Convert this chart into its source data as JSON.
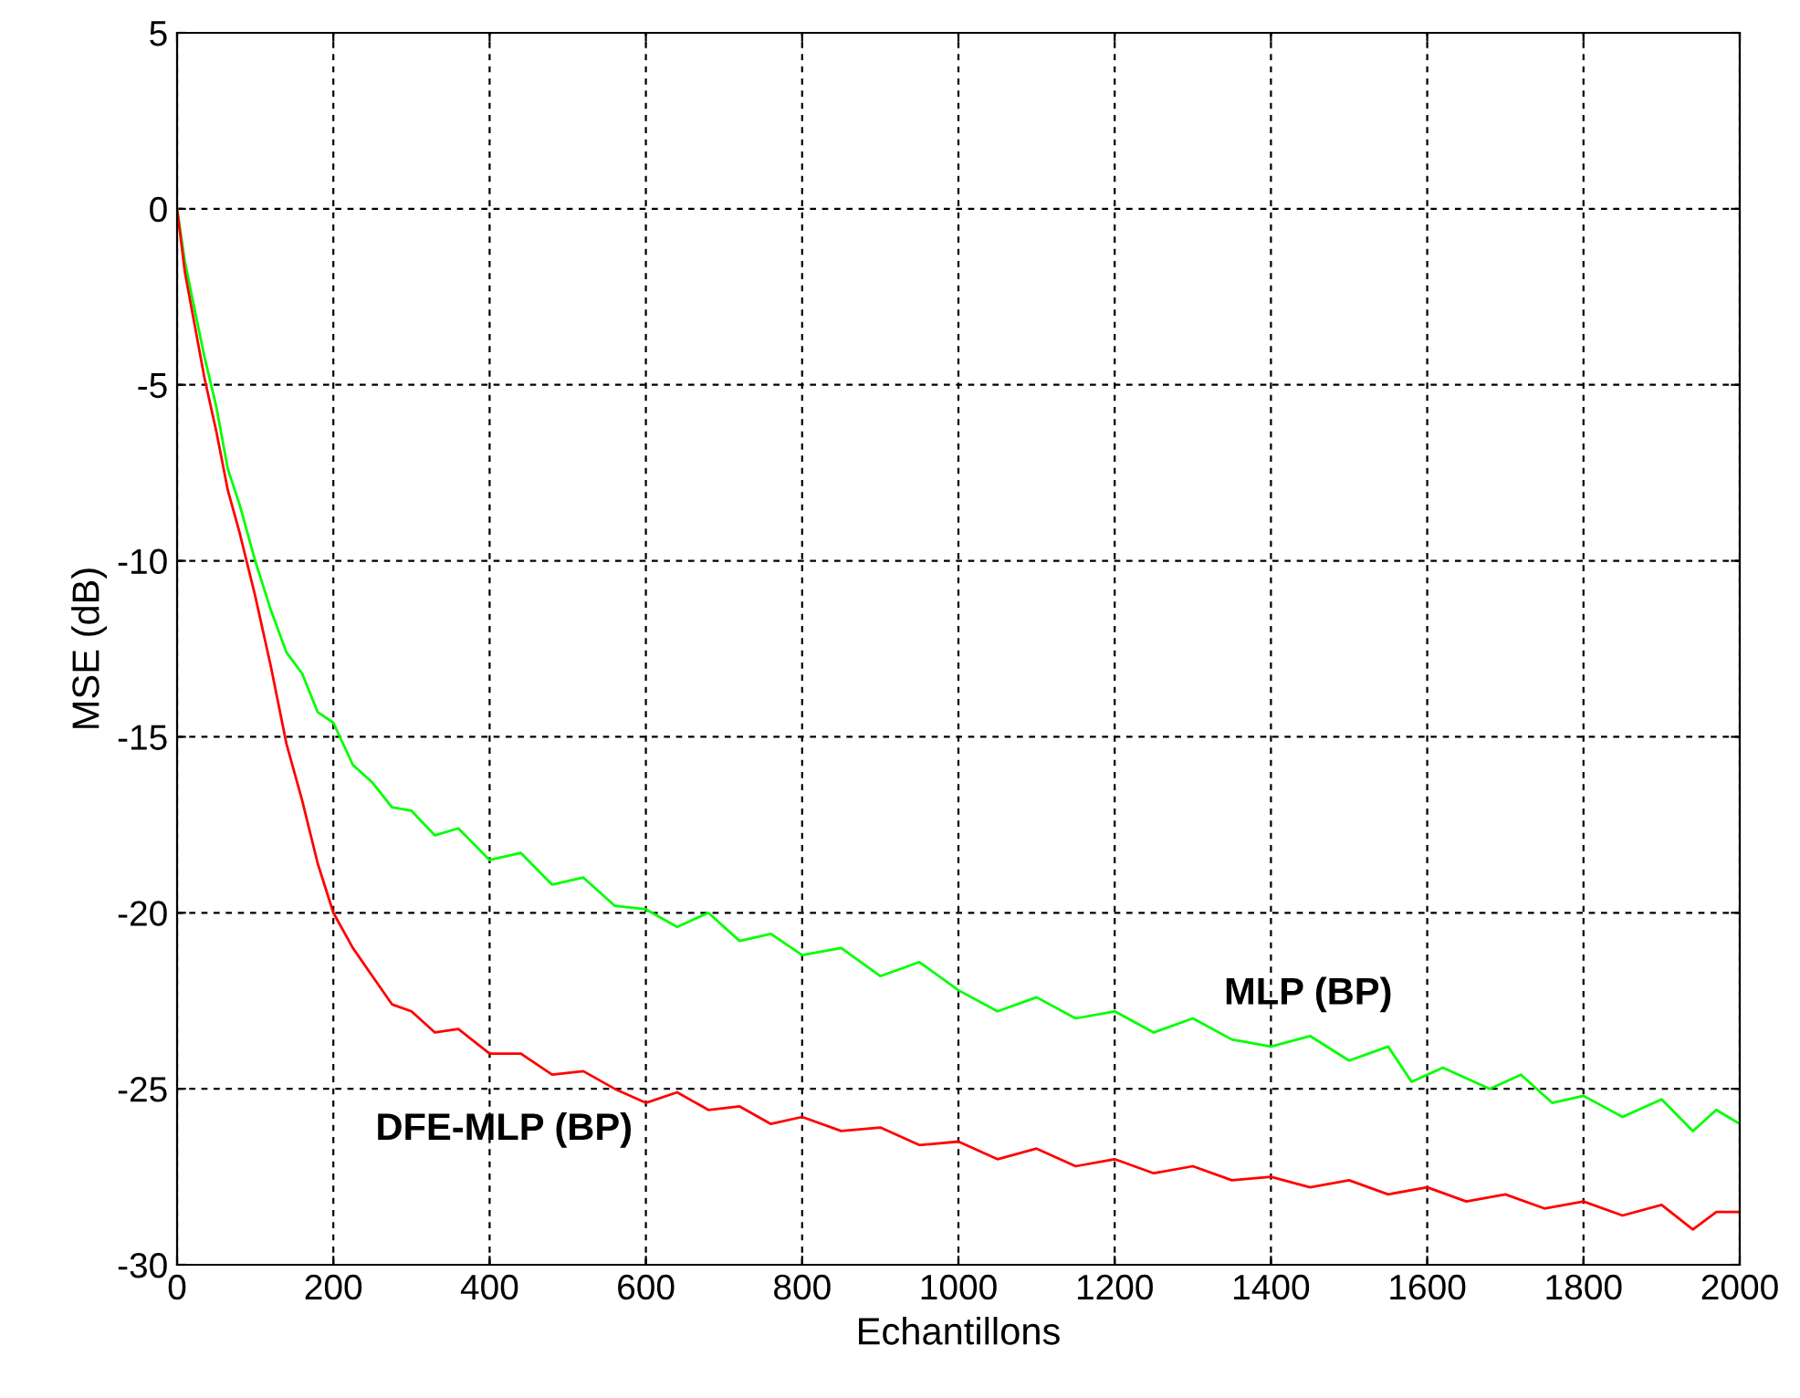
{
  "chart_data": {
    "type": "line",
    "xlabel": "Echantillons",
    "ylabel": "MSE (dB)",
    "xlim": [
      0,
      2000
    ],
    "ylim": [
      -30,
      5
    ],
    "xticks": [
      0,
      200,
      400,
      600,
      800,
      1000,
      1200,
      1400,
      1600,
      1800,
      2000
    ],
    "yticks": [
      -30,
      -25,
      -20,
      -15,
      -10,
      -5,
      0,
      5
    ],
    "grid": true,
    "line_style": "solid",
    "marker": "none",
    "series": [
      {
        "color": "#00ff00",
        "x": [
          0,
          10,
          20,
          35,
          50,
          65,
          80,
          100,
          120,
          140,
          160,
          180,
          200,
          225,
          250,
          275,
          300,
          330,
          360,
          400,
          440,
          480,
          520,
          560,
          600,
          640,
          680,
          720,
          760,
          800,
          850,
          900,
          950,
          1000,
          1050,
          1100,
          1150,
          1200,
          1250,
          1300,
          1350,
          1400,
          1450,
          1500,
          1550,
          1580,
          1620,
          1680,
          1720,
          1760,
          1800,
          1850,
          1900,
          1940,
          1970,
          2000
        ],
        "values": [
          0,
          -1.5,
          -2.6,
          -4.2,
          -5.6,
          -7.4,
          -8.4,
          -10.0,
          -11.4,
          -12.6,
          -13.2,
          -14.3,
          -14.6,
          -15.8,
          -16.3,
          -17.0,
          -17.1,
          -17.8,
          -17.6,
          -18.5,
          -18.3,
          -19.2,
          -19.0,
          -19.8,
          -19.9,
          -20.4,
          -20.0,
          -20.8,
          -20.6,
          -21.2,
          -21.0,
          -21.8,
          -21.4,
          -22.2,
          -22.8,
          -22.4,
          -23.0,
          -22.8,
          -23.4,
          -23.0,
          -23.6,
          -23.8,
          -23.5,
          -24.2,
          -23.8,
          -24.8,
          -24.4,
          -25.0,
          -24.6,
          -25.4,
          -25.2,
          -25.8,
          -25.3,
          -26.2,
          -25.6,
          -26.0
        ]
      },
      {
        "color": "#ff0000",
        "x": [
          0,
          10,
          20,
          35,
          50,
          65,
          80,
          100,
          120,
          140,
          160,
          180,
          200,
          225,
          250,
          275,
          300,
          330,
          360,
          400,
          440,
          480,
          520,
          560,
          600,
          640,
          680,
          720,
          760,
          800,
          850,
          900,
          950,
          1000,
          1050,
          1100,
          1150,
          1200,
          1250,
          1300,
          1350,
          1400,
          1450,
          1500,
          1550,
          1600,
          1650,
          1700,
          1750,
          1800,
          1850,
          1900,
          1940,
          1970,
          2000
        ],
        "values": [
          0,
          -1.8,
          -3.0,
          -4.8,
          -6.3,
          -8.0,
          -9.2,
          -11.0,
          -13.0,
          -15.2,
          -16.8,
          -18.6,
          -20.0,
          -21.0,
          -21.8,
          -22.6,
          -22.8,
          -23.4,
          -23.3,
          -24.0,
          -24.0,
          -24.6,
          -24.5,
          -25.0,
          -25.4,
          -25.1,
          -25.6,
          -25.5,
          -26.0,
          -25.8,
          -26.2,
          -26.1,
          -26.6,
          -26.5,
          -27.0,
          -26.7,
          -27.2,
          -27.0,
          -27.4,
          -27.2,
          -27.6,
          -27.5,
          -27.8,
          -27.6,
          -28.0,
          -27.8,
          -28.2,
          -28.0,
          -28.4,
          -28.2,
          -28.6,
          -28.3,
          -29.0,
          -28.5,
          -28.5
        ]
      }
    ],
    "annotations": [
      "MLP (BP)",
      "DFE-MLP (BP)"
    ]
  }
}
